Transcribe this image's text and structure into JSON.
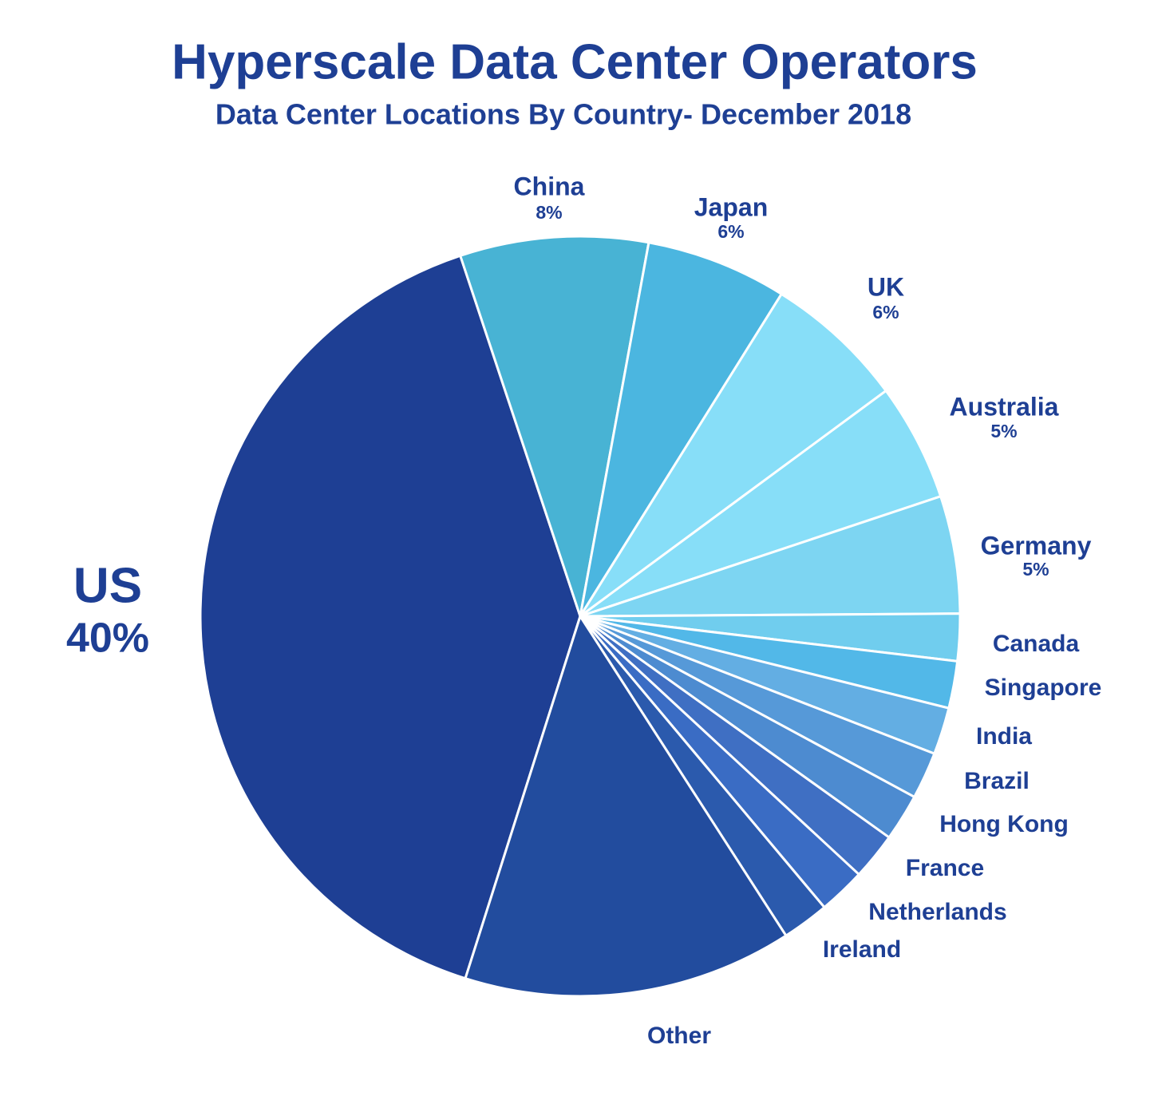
{
  "chart_data": {
    "type": "pie",
    "title": "Hyperscale Data Center Operators",
    "subtitle": "Data Center Locations By Country- December 2018",
    "categories": [
      "US",
      "China",
      "Japan",
      "UK",
      "Australia",
      "Germany",
      "Canada",
      "Singapore",
      "India",
      "Brazil",
      "Hong Kong",
      "France",
      "Netherlands",
      "Ireland",
      "Other"
    ],
    "values": [
      40,
      8,
      6,
      6,
      5,
      5,
      2,
      2,
      2,
      2,
      2,
      2,
      2,
      2,
      14
    ],
    "value_labels": [
      "40%",
      "8%",
      "6%",
      "6%",
      "5%",
      "5%",
      null,
      null,
      null,
      null,
      null,
      null,
      null,
      null,
      null
    ],
    "colors": [
      "#1e3f94",
      "#48b3d4",
      "#4bb6e0",
      "#87def8",
      "#87def8",
      "#7dd5f2",
      "#70cdee",
      "#52b8e8",
      "#63aee3",
      "#5699d8",
      "#4d8bd0",
      "#3f6fc3",
      "#3a6cc4",
      "#2b5aad",
      "#224c9e"
    ]
  }
}
